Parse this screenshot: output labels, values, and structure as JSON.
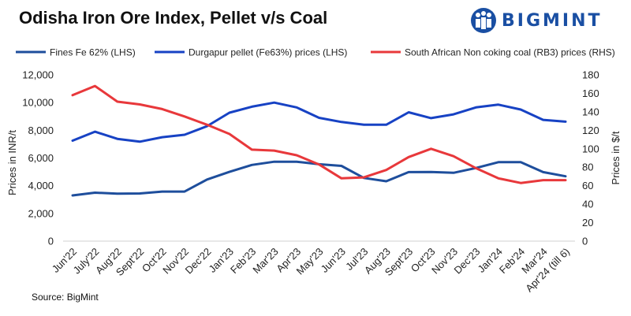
{
  "title": "Odisha Iron Ore Index, Pellet v/s Coal",
  "logo": {
    "text": "BIGMINT",
    "icon": "bigmint-people-logo-icon",
    "color": "#1a4fa3"
  },
  "source": "Source: BigMint",
  "chart_data": {
    "type": "line",
    "categories": [
      "Jun'22",
      "July'22",
      "Aug'22",
      "Sept'22",
      "Oct'22",
      "Nov'22",
      "Dec'22",
      "Jan'23",
      "Feb'23",
      "Mar'23",
      "Apr'23",
      "May'23",
      "Jun'23",
      "Jul'23",
      "Aug'23",
      "Sept'23",
      "Oct'23",
      "Nov'23",
      "Dec'23",
      "Jan'24",
      "Feb'24",
      "Mar'24",
      "Apr'24 (till 6)"
    ],
    "series": [
      {
        "name": "Fines Fe 62% (LHS)",
        "axis": "left",
        "color": "#1e4e9c",
        "values": [
          3300,
          3500,
          3430,
          3440,
          3580,
          3580,
          4450,
          5000,
          5500,
          5730,
          5730,
          5550,
          5430,
          4560,
          4320,
          4980,
          4990,
          4930,
          5280,
          5700,
          5700,
          4980,
          4680
        ]
      },
      {
        "name": "Durgapur pellet (Fe63%) prices (LHS)",
        "axis": "left",
        "color": "#1742c4",
        "values": [
          7250,
          7900,
          7380,
          7180,
          7500,
          7680,
          8300,
          9270,
          9700,
          10000,
          9650,
          8900,
          8600,
          8400,
          8400,
          9300,
          8880,
          9150,
          9650,
          9850,
          9500,
          8750,
          8620
        ]
      },
      {
        "name": "South African Non coking coal (RB3) prices (RHS)",
        "axis": "right",
        "color": "#e8383b",
        "values": [
          158,
          168,
          151,
          148,
          143,
          135,
          126,
          116,
          99,
          98,
          93,
          83,
          68,
          69,
          77,
          91,
          100,
          92,
          79,
          68,
          63,
          66,
          66
        ]
      }
    ],
    "y_left": {
      "label": "Prices in INR/t",
      "min": 0,
      "max": 12000,
      "ticks": [
        "0",
        "2,000",
        "4,000",
        "6,000",
        "8,000",
        "10,000",
        "12,000"
      ]
    },
    "y_right": {
      "label": "Prices in $/t",
      "min": 0,
      "max": 180,
      "ticks": [
        "0",
        "20",
        "40",
        "60",
        "80",
        "100",
        "120",
        "140",
        "160",
        "180"
      ]
    },
    "grid": false,
    "legend_position": "top"
  }
}
